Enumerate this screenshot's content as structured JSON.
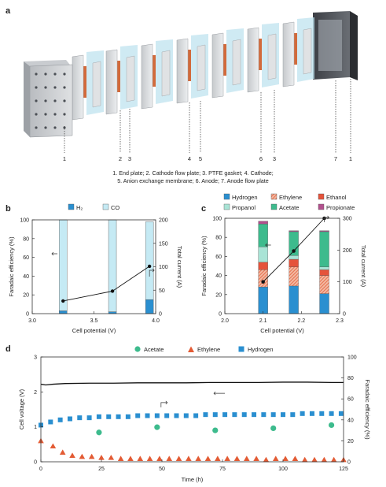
{
  "panels": {
    "a": "a",
    "b": "b",
    "c": "c",
    "d": "d"
  },
  "caption": {
    "line1": "1. End plate; 2. Cathode flow plate; 3. PTFE gasket; 4. Cathode;",
    "line2": "5. Anion exchange membrane; 6. Anode; 7. Anode flow plate"
  },
  "stack_callouts": [
    "1",
    "2",
    "3",
    "4",
    "5",
    "6",
    "3",
    "7",
    "1"
  ],
  "colors": {
    "hydrogen": "#2a8fd0",
    "co": "#c5eaf4",
    "ethylene": "#e35b34",
    "ethanol": "#e5533b",
    "propanol": "#a9e4d6",
    "acetate": "#3dbb8d",
    "propionate": "#b2508d",
    "voltage": "#111111"
  },
  "chart_data": [
    {
      "type": "bar",
      "panel": "b",
      "xlabel": "Cell potential (V)",
      "ylabel": "Faradaic efficiency (%)",
      "y2label": "Total current (A)",
      "xlim": [
        3.0,
        4.0
      ],
      "xticks": [
        "3.0",
        "3.5",
        "4.0"
      ],
      "ylim": [
        0,
        100
      ],
      "yticks": [
        "0",
        "20",
        "40",
        "60",
        "80",
        "100"
      ],
      "y2lim": [
        0,
        200
      ],
      "y2ticks": [
        "0",
        "50",
        "100",
        "150",
        "200"
      ],
      "legend": [
        "H₂",
        "CO"
      ],
      "x": [
        3.25,
        3.65,
        3.95
      ],
      "series": [
        {
          "name": "H₂",
          "values": [
            3,
            2,
            15
          ]
        },
        {
          "name": "CO",
          "values": [
            97,
            98,
            83
          ]
        }
      ],
      "current": [
        27,
        48,
        101
      ]
    },
    {
      "type": "bar",
      "panel": "c",
      "xlabel": "Cell potential (V)",
      "ylabel": "Faradaic efficiency (%)",
      "y2label": "Total current (A)",
      "xlim": [
        2.0,
        2.3
      ],
      "xticks": [
        "2.0",
        "2.1",
        "2.2",
        "2.3"
      ],
      "ylim": [
        0,
        100
      ],
      "yticks": [
        "0",
        "20",
        "40",
        "60",
        "80",
        "100"
      ],
      "y2lim": [
        0,
        300
      ],
      "y2ticks": [
        "0",
        "100",
        "200",
        "300"
      ],
      "legend": [
        "Hydrogen",
        "Ethylene",
        "Ethanol",
        "Propanol",
        "Acetate",
        "Propionate"
      ],
      "x": [
        2.1,
        2.18,
        2.26
      ],
      "series": [
        {
          "name": "Hydrogen",
          "values": [
            28,
            29,
            21
          ]
        },
        {
          "name": "Ethylene",
          "values": [
            18,
            20,
            19
          ]
        },
        {
          "name": "Ethanol",
          "values": [
            8,
            8,
            6
          ]
        },
        {
          "name": "Propanol",
          "values": [
            16,
            4,
            3
          ]
        },
        {
          "name": "Acetate",
          "values": [
            24,
            25,
            37
          ]
        },
        {
          "name": "Propionate",
          "values": [
            3,
            1,
            1
          ]
        }
      ],
      "current": [
        100,
        197,
        300
      ]
    },
    {
      "type": "scatter",
      "panel": "d",
      "xlabel": "Time (h)",
      "ylabel": "Cell voltage (V)",
      "y2label": "Faradaic efficiency (%)",
      "xlim": [
        0,
        125
      ],
      "xticks": [
        "0",
        "25",
        "50",
        "75",
        "100",
        "125"
      ],
      "ylim": [
        0,
        3
      ],
      "yticks": [
        "0",
        "1",
        "2",
        "3"
      ],
      "y2lim": [
        0,
        100
      ],
      "y2ticks": [
        "0",
        "20",
        "40",
        "60",
        "80",
        "100"
      ],
      "legend": [
        "Acetate",
        "Ethylene",
        "Hydrogen"
      ],
      "voltage": {
        "x": [
          0,
          2,
          5,
          10,
          20,
          30,
          40,
          50,
          60,
          70,
          80,
          90,
          100,
          110,
          120,
          125
        ],
        "y": [
          2.22,
          2.2,
          2.22,
          2.24,
          2.25,
          2.25,
          2.26,
          2.26,
          2.26,
          2.27,
          2.27,
          2.27,
          2.28,
          2.28,
          2.27,
          2.27
        ]
      },
      "acetate": {
        "x": [
          24,
          48,
          72,
          96,
          120
        ],
        "y": [
          28,
          33,
          30,
          32,
          35
        ]
      },
      "ethylene": {
        "x": [
          0,
          5,
          9,
          13,
          17,
          21,
          25,
          29,
          33,
          37,
          41,
          45,
          49,
          53,
          57,
          61,
          65,
          69,
          73,
          77,
          81,
          85,
          89,
          93,
          97,
          101,
          105,
          109,
          113,
          117,
          121,
          125
        ],
        "y": [
          20,
          15,
          9,
          6,
          5,
          5,
          4,
          4,
          3,
          3,
          3,
          3,
          3,
          3,
          3,
          3,
          3,
          3,
          3,
          3,
          3,
          3,
          3,
          2,
          3,
          3,
          3,
          2,
          2,
          2,
          2,
          2
        ]
      },
      "hydrogen": {
        "x": [
          0,
          4,
          8,
          12,
          16,
          20,
          24,
          28,
          32,
          36,
          40,
          44,
          48,
          52,
          56,
          60,
          64,
          68,
          72,
          76,
          80,
          84,
          88,
          92,
          96,
          100,
          104,
          108,
          112,
          116,
          120,
          124
        ],
        "y": [
          35,
          38,
          40,
          41,
          42,
          42,
          43,
          43,
          43,
          43,
          44,
          44,
          44,
          44,
          44,
          44,
          44,
          45,
          45,
          45,
          45,
          45,
          45,
          45,
          45,
          45,
          45,
          46,
          46,
          46,
          46,
          46
        ]
      }
    }
  ]
}
